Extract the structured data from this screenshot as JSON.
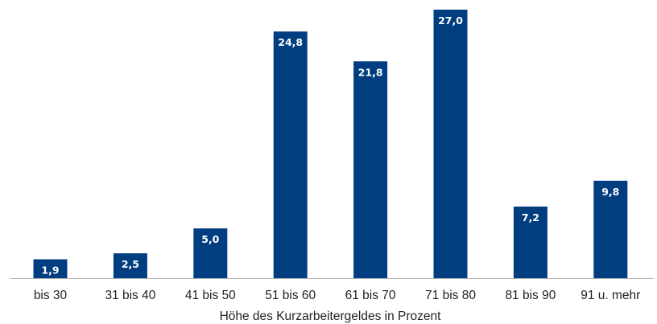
{
  "chart_data": {
    "type": "bar",
    "categories": [
      "bis 30",
      "31 bis 40",
      "41 bis 50",
      "51 bis 60",
      "61 bis 70",
      "71 bis 80",
      "81 bis 90",
      "91 u. mehr"
    ],
    "values": [
      1.9,
      2.5,
      5.0,
      24.8,
      21.8,
      27.0,
      7.2,
      9.8
    ],
    "value_labels": [
      "1,9",
      "2,5",
      "5,0",
      "24,8",
      "21,8",
      "27,0",
      "7,2",
      "9,8"
    ],
    "xlabel": "Höhe des Kurzarbeitergeldes in Prozent",
    "ylabel": "",
    "ylim": [
      0,
      27
    ],
    "grid": false,
    "bar_color": "#003e80",
    "label_color": "#ffffff"
  }
}
